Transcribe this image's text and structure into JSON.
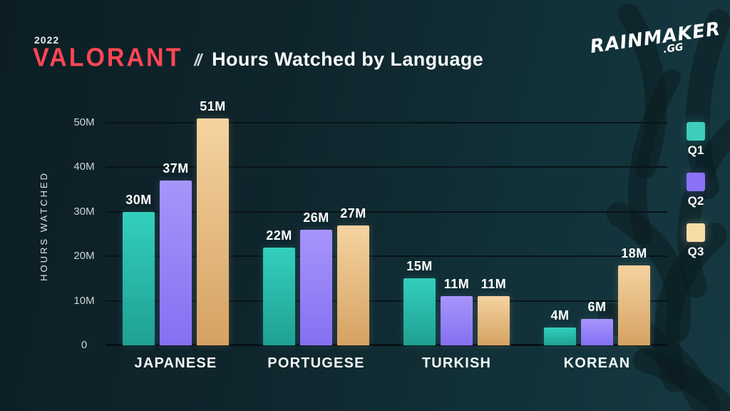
{
  "header": {
    "year": "2022",
    "brand": "VALORANT",
    "separator": "//",
    "title": "Hours Watched by Language"
  },
  "logo": {
    "line1": "RAINMAKER",
    "line2": ".GG"
  },
  "colors": {
    "background_left": "#0c1e24",
    "background_right": "#163a42",
    "grid": "#081318",
    "brand_red": "#ff4655",
    "text": "#f6f9f9",
    "tick_text": "#ccd6d8"
  },
  "chart_data": {
    "type": "bar",
    "title": "Hours Watched by Language",
    "xlabel": "",
    "ylabel": "HOURS WATCHED",
    "unit": "M",
    "ylim": [
      0,
      50
    ],
    "ytick_values": [
      0,
      10,
      20,
      30,
      40,
      50
    ],
    "ytick_labels": [
      "0",
      "10M",
      "20M",
      "30M",
      "40M",
      "50M"
    ],
    "grid": true,
    "legend_position": "right",
    "categories": [
      "JAPANESE",
      "PORTUGESE",
      "TURKISH",
      "KOREAN"
    ],
    "series": [
      {
        "name": "Q1",
        "legend_color": "#3ecdbb",
        "gradient_top": "#33cfbc",
        "gradient_bottom": "#1fa092",
        "values": [
          30,
          22,
          15,
          4
        ]
      },
      {
        "name": "Q2",
        "legend_color": "#8b72f5",
        "gradient_top": "#a795fb",
        "gradient_bottom": "#8570f2",
        "values": [
          37,
          26,
          11,
          6
        ]
      },
      {
        "name": "Q3",
        "legend_color": "#f8dca8",
        "gradient_top": "#f5d3a0",
        "gradient_bottom": "#d5a262",
        "values": [
          51,
          27,
          11,
          18
        ]
      }
    ]
  }
}
